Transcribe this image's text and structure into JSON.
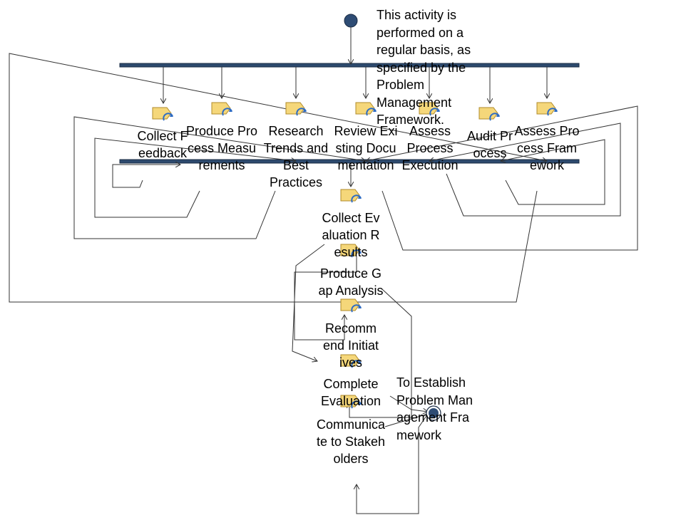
{
  "note": "This activity is performed on a regular basis, as specified by the Problem Management Framework.",
  "end_label": "To Establish Problem Management Framework",
  "activities": {
    "collect_feedback": "Collect Feedback",
    "produce_process_measurements": "Produce Process Measurements",
    "research_trends": "Research Trends and Best Practices",
    "review_documentation": "Review Existing Documentation",
    "assess_execution": "Assess Process Execution",
    "audit_process": "Audit Process",
    "assess_framework": "Assess Process Framework",
    "collect_results": "Collect Evaluation Results",
    "gap_analysis": "Produce Gap Analysis",
    "recommend": "Recommend Initiatives",
    "complete": "Complete Evaluation",
    "communicate": "Communicate to Stakeholders"
  },
  "colors": {
    "bar": "#2d4a6e",
    "node": "#2e4c74",
    "icon_fill": "#f5d77a",
    "icon_arrow": "#2e6cc4"
  }
}
